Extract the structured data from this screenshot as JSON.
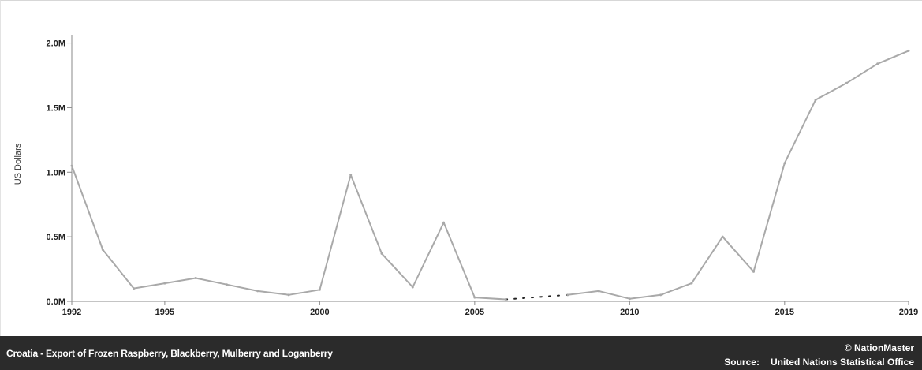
{
  "chart_data": {
    "type": "line",
    "title": "Croatia - Export of Frozen Raspberry, Blackberry, Mulberry and Loganberry",
    "xlabel": "",
    "ylabel": "US Dollars",
    "x_ticks": [
      "1992",
      "1995",
      "2000",
      "2005",
      "2010",
      "2015",
      "2019"
    ],
    "y_ticks": [
      "0.0M",
      "0.5M",
      "1.0M",
      "1.5M",
      "2.0M"
    ],
    "xlim": [
      1992,
      2019
    ],
    "ylim": [
      0,
      2150000
    ],
    "grid": false,
    "series": [
      {
        "name": "",
        "x": [
          1992,
          1993,
          1994,
          1995,
          1996,
          1997,
          1998,
          1999,
          2000,
          2001,
          2002,
          2003,
          2004,
          2005,
          2006,
          2008,
          2009,
          2010,
          2011,
          2012,
          2013,
          2014,
          2015,
          2016,
          2017,
          2018,
          2019
        ],
        "y": [
          1050000,
          400000,
          100000,
          140000,
          180000,
          130000,
          80000,
          50000,
          90000,
          980000,
          370000,
          110000,
          610000,
          30000,
          15000,
          50000,
          80000,
          20000,
          50000,
          140000,
          500000,
          230000,
          1070000,
          1560000,
          1690000,
          1840000,
          1940000
        ],
        "gap": [
          [
            2006,
            15000
          ],
          [
            2008,
            50000
          ]
        ]
      }
    ]
  },
  "footer": {
    "title": "Croatia - Export of Frozen Raspberry, Blackberry, Mulberry and Loganberry",
    "copyright": "© NationMaster",
    "source_label": "Source:",
    "source_value": "United Nations Statistical Office"
  },
  "colors": {
    "line": "#a9a9a9",
    "footer_bg": "#2b2b2b",
    "axis": "#8a8a8a"
  }
}
